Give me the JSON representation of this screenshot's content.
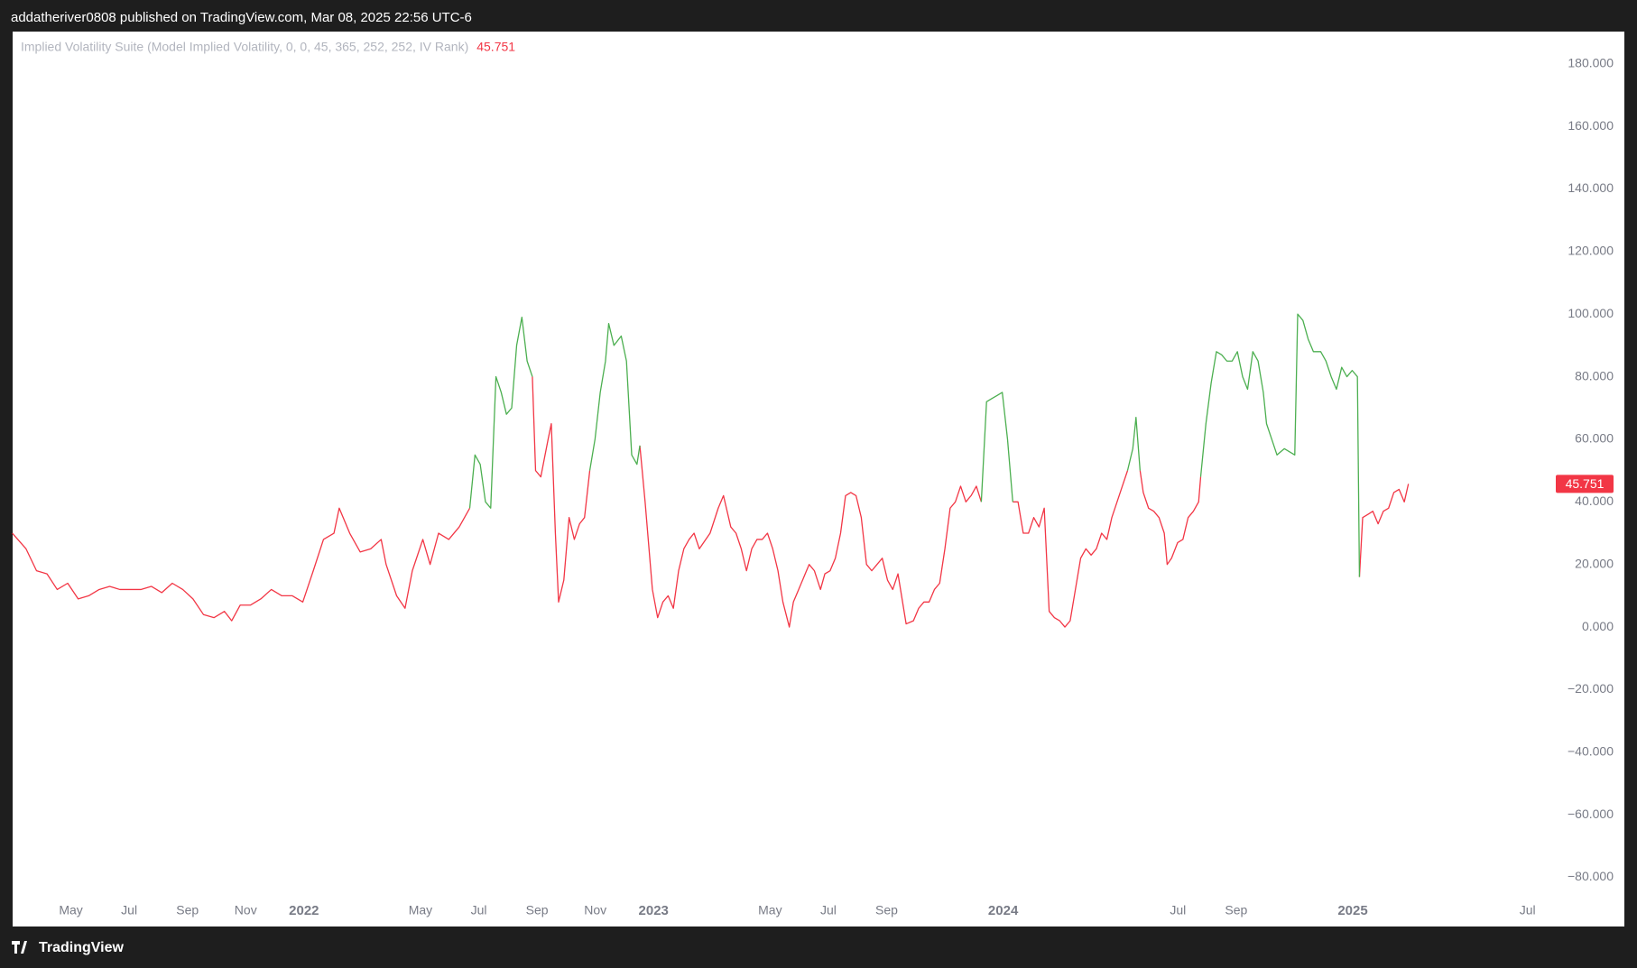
{
  "header": "addatheriver0808 published on TradingView.com, Mar 08, 2025 22:56 UTC-6",
  "footer": "TradingView",
  "chart_data": {
    "type": "line",
    "title": "Implied Volatility Suite (Model Implied Volatility, 0, 0, 45, 365, 252, 252, IV Rank)",
    "grid": false,
    "xlim": [
      2,
      55
    ],
    "ylim": [
      -95.7,
      190.3
    ],
    "xticks": [
      {
        "value": 4,
        "label": "May"
      },
      {
        "value": 6,
        "label": "Jul"
      },
      {
        "value": 8,
        "label": "Sep"
      },
      {
        "value": 10,
        "label": "Nov"
      },
      {
        "value": 12,
        "label": "2022"
      },
      {
        "value": 16,
        "label": "May"
      },
      {
        "value": 18,
        "label": "Jul"
      },
      {
        "value": 20,
        "label": "Sep"
      },
      {
        "value": 22,
        "label": "Nov"
      },
      {
        "value": 24,
        "label": "2023"
      },
      {
        "value": 28,
        "label": "May"
      },
      {
        "value": 30,
        "label": "Jul"
      },
      {
        "value": 32,
        "label": "Sep"
      },
      {
        "value": 36,
        "label": "2024"
      },
      {
        "value": 42,
        "label": "Jul"
      },
      {
        "value": 44,
        "label": "Sep"
      },
      {
        "value": 48,
        "label": "2025"
      },
      {
        "value": 54,
        "label": "Jul"
      }
    ],
    "yticks": [
      {
        "value": 180,
        "label": "180.000"
      },
      {
        "value": 160,
        "label": "160.000"
      },
      {
        "value": 140,
        "label": "140.000"
      },
      {
        "value": 120,
        "label": "120.000"
      },
      {
        "value": 100,
        "label": "100.000"
      },
      {
        "value": 80,
        "label": "80.000"
      },
      {
        "value": 60,
        "label": "60.000"
      },
      {
        "value": 40,
        "label": "40.000"
      },
      {
        "value": 20,
        "label": "20.000"
      },
      {
        "value": 0,
        "label": "0.000"
      },
      {
        "value": -20,
        "label": "−20.000"
      },
      {
        "value": -40,
        "label": "−40.000"
      },
      {
        "value": -60,
        "label": "−60.000"
      },
      {
        "value": -80,
        "label": "−80.000"
      }
    ],
    "x": [
      1.99,
      2.46,
      2.82,
      3.18,
      3.53,
      3.89,
      4.25,
      4.61,
      4.97,
      5.33,
      5.68,
      6.04,
      6.4,
      6.76,
      7.12,
      7.48,
      7.84,
      8.19,
      8.55,
      8.91,
      9.27,
      9.52,
      9.81,
      10.16,
      10.52,
      10.88,
      11.24,
      11.6,
      11.96,
      12.32,
      12.67,
      13.03,
      13.21,
      13.57,
      13.93,
      14.29,
      14.65,
      14.82,
      15.18,
      15.47,
      15.72,
      16.08,
      16.33,
      16.62,
      16.97,
      17.33,
      17.69,
      17.87,
      18.05,
      18.23,
      18.41,
      18.59,
      18.77,
      18.95,
      19.13,
      19.3,
      19.48,
      19.66,
      19.84,
      19.95,
      20.13,
      20.38,
      20.49,
      20.63,
      20.74,
      20.92,
      21.1,
      21.28,
      21.46,
      21.63,
      21.81,
      21.99,
      22.17,
      22.35,
      22.46,
      22.64,
      22.89,
      23.07,
      23.25,
      23.43,
      23.53,
      23.71,
      23.96,
      24.14,
      24.32,
      24.5,
      24.68,
      24.86,
      25.04,
      25.22,
      25.39,
      25.57,
      25.94,
      26.22,
      26.4,
      26.65,
      26.83,
      27.01,
      27.19,
      27.37,
      27.55,
      27.73,
      27.91,
      28.09,
      28.27,
      28.44,
      28.66,
      28.8,
      28.98,
      29.16,
      29.34,
      29.52,
      29.73,
      29.88,
      30.06,
      30.24,
      30.42,
      30.59,
      30.77,
      30.95,
      31.13,
      31.31,
      31.49,
      31.67,
      31.85,
      32.03,
      32.21,
      32.39,
      32.67,
      32.92,
      33.1,
      33.28,
      33.46,
      33.64,
      33.82,
      34.0,
      34.18,
      34.36,
      34.54,
      34.72,
      34.9,
      35.08,
      35.25,
      35.43,
      35.61,
      35.79,
      35.97,
      36.15,
      36.33,
      36.51,
      36.69,
      36.87,
      37.05,
      37.23,
      37.41,
      37.58,
      37.76,
      37.94,
      38.12,
      38.3,
      38.48,
      38.66,
      38.84,
      39.02,
      39.2,
      39.38,
      39.56,
      39.73,
      39.91,
      40.09,
      40.27,
      40.45,
      40.56,
      40.7,
      40.81,
      40.99,
      41.17,
      41.35,
      41.53,
      41.63,
      41.78,
      41.99,
      42.17,
      42.35,
      42.53,
      42.71,
      42.78,
      42.96,
      43.14,
      43.32,
      43.5,
      43.68,
      43.86,
      44.04,
      44.22,
      44.39,
      44.57,
      44.75,
      44.93,
      45.04,
      45.22,
      45.4,
      45.65,
      45.83,
      46.01,
      46.11,
      46.29,
      46.47,
      46.65,
      46.9,
      47.08,
      47.26,
      47.44,
      47.62,
      47.8,
      47.98,
      48.16,
      48.23,
      48.34,
      48.52,
      48.69,
      48.87,
      49.05,
      49.23,
      49.41,
      49.59,
      49.77,
      49.91
    ],
    "series": [
      {
        "name": "Implied Volatility Suite (Model Implied Volatility, 0, 0, 45, 365, 252, 252, IV Rank)",
        "color": "#f23645",
        "values": [
          30,
          25,
          18,
          17,
          12,
          14,
          9,
          10,
          12,
          13,
          12,
          12,
          12,
          13,
          11,
          14,
          12,
          9,
          4,
          3,
          5,
          2,
          7,
          7,
          9,
          12,
          10,
          10,
          8,
          18,
          28,
          30,
          38,
          30,
          24,
          25,
          28,
          20,
          10,
          6,
          18,
          28,
          20,
          30,
          28,
          32,
          38,
          null,
          null,
          null,
          null,
          null,
          null,
          null,
          null,
          null,
          null,
          null,
          80,
          50,
          48,
          60,
          65,
          30,
          8,
          15,
          35,
          28,
          33,
          35,
          50,
          null,
          null,
          null,
          null,
          null,
          null,
          null,
          null,
          null,
          58,
          40,
          12,
          3,
          8,
          10,
          6,
          18,
          25,
          28,
          30,
          25,
          30,
          38,
          42,
          32,
          30,
          25,
          18,
          25,
          28,
          28,
          30,
          25,
          18,
          8,
          0,
          8,
          12,
          16,
          20,
          18,
          12,
          17,
          18,
          22,
          30,
          42,
          43,
          42,
          35,
          20,
          18,
          20,
          22,
          15,
          12,
          17,
          1,
          2,
          6,
          8,
          8,
          12,
          14,
          25,
          38,
          40,
          45,
          40,
          42,
          45,
          40,
          null,
          null,
          null,
          null,
          null,
          40,
          40,
          30,
          30,
          35,
          32,
          38,
          5,
          3,
          2,
          0,
          2,
          12,
          22,
          25,
          23,
          25,
          30,
          28,
          35,
          40,
          45,
          50,
          null,
          null,
          50,
          43,
          38,
          37,
          35,
          30,
          20,
          22,
          27,
          28,
          35,
          37,
          40,
          48,
          null,
          null,
          null,
          null,
          null,
          null,
          null,
          null,
          null,
          null,
          null,
          null,
          null,
          null,
          null,
          null,
          null,
          null,
          null,
          null,
          null,
          null,
          null,
          null,
          null,
          null,
          null,
          null,
          null,
          null,
          16,
          35,
          36,
          37,
          33,
          37,
          38,
          43,
          44,
          40,
          45.751
        ]
      },
      {
        "color": "#4caf50",
        "values": [
          null,
          null,
          null,
          null,
          null,
          null,
          null,
          null,
          null,
          null,
          null,
          null,
          null,
          null,
          null,
          null,
          null,
          null,
          null,
          null,
          null,
          null,
          null,
          null,
          null,
          null,
          null,
          null,
          null,
          null,
          null,
          null,
          null,
          null,
          null,
          null,
          null,
          null,
          null,
          null,
          null,
          null,
          null,
          null,
          null,
          null,
          38,
          55,
          52,
          40,
          38,
          80,
          75,
          68,
          70,
          90,
          99,
          85,
          80,
          null,
          null,
          null,
          null,
          null,
          null,
          null,
          null,
          null,
          null,
          null,
          50,
          60,
          75,
          85,
          97,
          90,
          93,
          85,
          55,
          52,
          58,
          null,
          null,
          null,
          null,
          null,
          null,
          null,
          null,
          null,
          null,
          null,
          null,
          null,
          null,
          null,
          null,
          null,
          null,
          null,
          null,
          null,
          null,
          null,
          null,
          null,
          null,
          null,
          null,
          null,
          null,
          null,
          null,
          null,
          null,
          null,
          null,
          null,
          null,
          null,
          null,
          null,
          null,
          null,
          null,
          null,
          null,
          null,
          null,
          null,
          null,
          null,
          null,
          null,
          null,
          null,
          null,
          null,
          null,
          null,
          null,
          null,
          40,
          72,
          73,
          74,
          75,
          60,
          40,
          null,
          null,
          null,
          null,
          null,
          null,
          null,
          null,
          null,
          null,
          null,
          null,
          null,
          null,
          null,
          null,
          null,
          null,
          null,
          null,
          null,
          50,
          57,
          67,
          50,
          null,
          null,
          null,
          null,
          null,
          null,
          null,
          null,
          null,
          null,
          null,
          null,
          48,
          65,
          78,
          88,
          87,
          85,
          85,
          88,
          80,
          76,
          88,
          85,
          75,
          65,
          60,
          55,
          57,
          56,
          55,
          100,
          98,
          92,
          88,
          88,
          85,
          80,
          76,
          83,
          80,
          82,
          80,
          16,
          null,
          null,
          null,
          null,
          null,
          null,
          null,
          null,
          null,
          null
        ]
      }
    ]
  }
}
